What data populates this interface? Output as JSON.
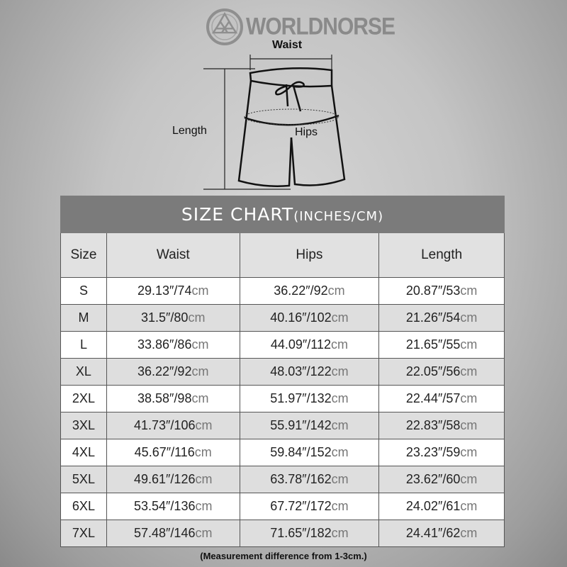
{
  "brand": {
    "name": "WORLDNORSE"
  },
  "diagram": {
    "waist_label": "Waist",
    "length_label": "Length",
    "hips_label": "Hips"
  },
  "table": {
    "title": "SIZE CHART",
    "title_units": "(INCHES/CM)",
    "headers": [
      "Size",
      "Waist",
      "Hips",
      "Length"
    ],
    "unit": "cm",
    "rows": [
      {
        "size": "S",
        "waist": "29.13″/74",
        "hips": "36.22″/92",
        "length": "20.87″/53"
      },
      {
        "size": "M",
        "waist": "31.5″/80",
        "hips": "40.16″/102",
        "length": "21.26″/54"
      },
      {
        "size": "L",
        "waist": "33.86″/86",
        "hips": "44.09″/112",
        "length": "21.65″/55"
      },
      {
        "size": "XL",
        "waist": "36.22″/92",
        "hips": "48.03″/122",
        "length": "22.05″/56"
      },
      {
        "size": "2XL",
        "waist": "38.58″/98",
        "hips": "51.97″/132",
        "length": "22.44″/57"
      },
      {
        "size": "3XL",
        "waist": "41.73″/106",
        "hips": "55.91″/142",
        "length": "22.83″/58"
      },
      {
        "size": "4XL",
        "waist": "45.67″/116",
        "hips": "59.84″/152",
        "length": "23.23″/59"
      },
      {
        "size": "5XL",
        "waist": "49.61″/126",
        "hips": "63.78″/162",
        "length": "23.62″/60"
      },
      {
        "size": "6XL",
        "waist": "53.54″/136",
        "hips": "67.72″/172",
        "length": "24.02″/61"
      },
      {
        "size": "7XL",
        "waist": "57.48″/146",
        "hips": "71.65″/182",
        "length": "24.41″/62"
      }
    ]
  },
  "note": "(Measurement difference from 1-3cm.)"
}
